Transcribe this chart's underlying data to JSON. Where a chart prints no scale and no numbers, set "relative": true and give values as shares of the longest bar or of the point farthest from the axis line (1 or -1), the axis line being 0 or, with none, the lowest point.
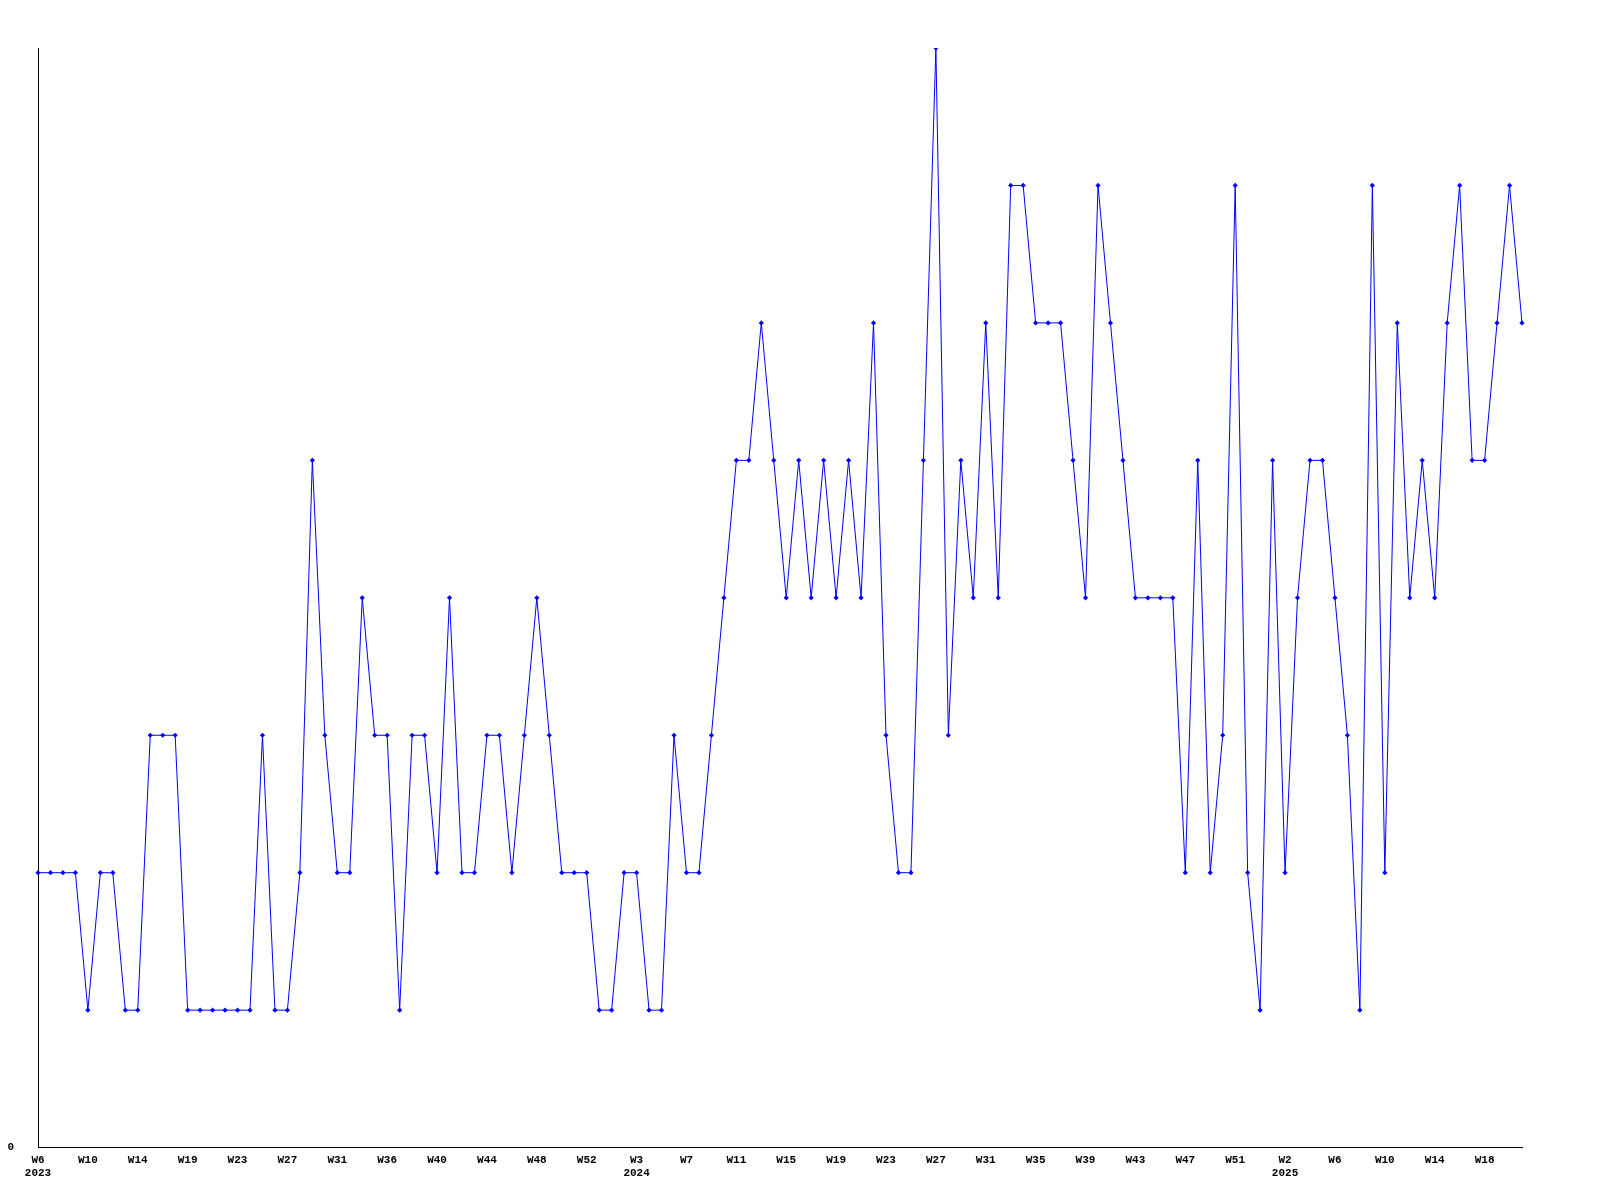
{
  "chart_data": {
    "type": "line",
    "relative": true,
    "grid": false,
    "legend": false,
    "marker": "diamond",
    "line_style": "solid",
    "annotations": [
      "0"
    ],
    "categories": [
      "W6\n2023",
      null,
      null,
      null,
      "W10",
      null,
      null,
      null,
      "W14",
      null,
      null,
      null,
      "W19",
      null,
      null,
      null,
      "W23",
      null,
      null,
      null,
      "W27",
      null,
      null,
      null,
      "W31",
      null,
      null,
      null,
      "W36",
      null,
      null,
      null,
      "W40",
      null,
      null,
      null,
      "W44",
      null,
      null,
      null,
      "W48",
      null,
      null,
      null,
      "W52",
      null,
      null,
      null,
      "W3\n2024",
      null,
      null,
      null,
      "W7",
      null,
      null,
      null,
      "W11",
      null,
      null,
      null,
      "W15",
      null,
      null,
      null,
      "W19",
      null,
      null,
      null,
      "W23",
      null,
      null,
      null,
      "W27",
      null,
      null,
      null,
      "W31",
      null,
      null,
      null,
      "W35",
      null,
      null,
      null,
      "W39",
      null,
      null,
      null,
      "W43",
      null,
      null,
      null,
      "W47",
      null,
      null,
      null,
      "W51",
      null,
      null,
      null,
      "W2\n2025",
      null,
      null,
      null,
      "W6",
      null,
      null,
      null,
      "W10",
      null,
      null,
      null,
      "W14",
      null,
      null,
      null,
      "W18",
      null,
      null,
      null
    ],
    "series": [
      {
        "color": "#0000ff",
        "values": [
          0.25,
          0.25,
          0.25,
          0.25,
          0.125,
          0.25,
          0.25,
          0.125,
          0.125,
          0.375,
          0.375,
          0.375,
          0.125,
          0.125,
          0.125,
          0.125,
          0.125,
          0.125,
          0.375,
          0.125,
          0.125,
          0.25,
          0.625,
          0.375,
          0.25,
          0.25,
          0.5,
          0.375,
          0.375,
          0.125,
          0.375,
          0.375,
          0.25,
          0.5,
          0.25,
          0.25,
          0.375,
          0.375,
          0.25,
          0.375,
          0.5,
          0.375,
          0.25,
          0.25,
          0.25,
          0.125,
          0.125,
          0.25,
          0.25,
          0.125,
          0.125,
          0.375,
          0.25,
          0.25,
          0.375,
          0.5,
          0.625,
          0.625,
          0.75,
          0.625,
          0.5,
          0.625,
          0.5,
          0.625,
          0.5,
          0.625,
          0.5,
          0.75,
          0.375,
          0.25,
          0.25,
          0.625,
          1,
          0.375,
          0.625,
          0.5,
          0.75,
          0.5,
          0.875,
          0.875,
          0.75,
          0.75,
          0.75,
          0.625,
          0.5,
          0.875,
          0.75,
          0.625,
          0.5,
          0.5,
          0.5,
          0.5,
          0.25,
          0.625,
          0.25,
          0.375,
          0.875,
          0.25,
          0.125,
          0.625,
          0.25,
          0.5,
          0.625,
          0.625,
          0.5,
          0.375,
          0.125,
          0.875,
          0.25,
          0.75,
          0.5,
          0.625,
          0.5,
          0.75,
          0.875,
          0.625,
          0.625,
          0.75,
          0.875,
          0.75
        ]
      }
    ]
  }
}
